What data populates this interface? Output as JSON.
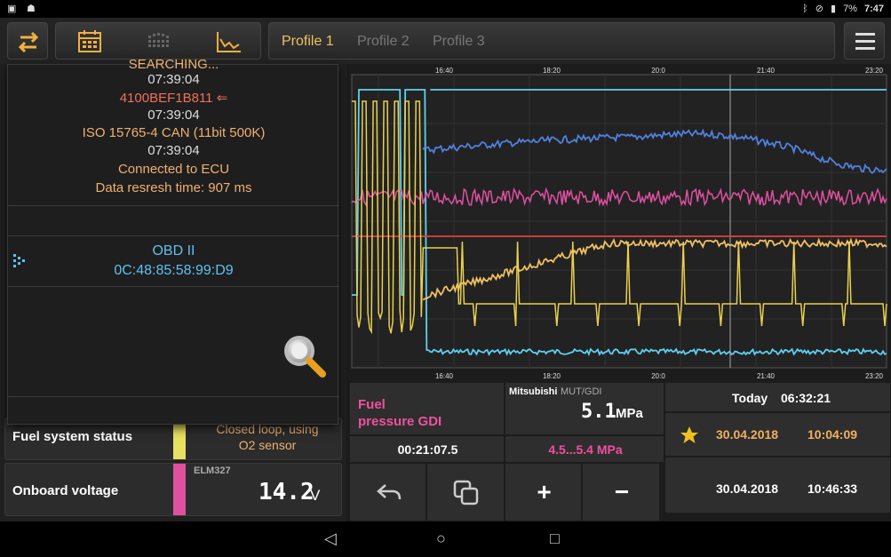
{
  "status": {
    "battery": "7%",
    "time": "7:47"
  },
  "toolbar": {
    "tabs": [
      {
        "label": "Profile 1"
      },
      {
        "label": "Profile 2"
      },
      {
        "label": "Profile 3"
      }
    ]
  },
  "overlay": {
    "lines": [
      "SEARCHING...",
      "07:39:04",
      "4100BEF1B811 ⇐",
      "07:39:04",
      "ISO 15765-4 CAN (11bit 500K)",
      "07:39:04",
      "Connected to ECU",
      "Data resresh time: 907 ms"
    ],
    "device": {
      "name": "OBD II",
      "mac": "0C:48:85:58:99:D9"
    }
  },
  "sensors": {
    "fuel_system": {
      "label": "Fuel system status",
      "value_line1": "Closed loop, using",
      "value_line2": "O2 sensor",
      "color": "#e8e060"
    },
    "onboard_voltage": {
      "label": "Onboard voltage",
      "source": "ELM327",
      "value": "14.2",
      "unit": "V",
      "color": "#e050a0"
    }
  },
  "chart_data": {
    "type": "line",
    "x_ticks": [
      "16:40",
      "18:20",
      "20:0",
      "21:40",
      "23:20"
    ],
    "series": [
      {
        "color": "#60d0f0"
      },
      {
        "color": "#5080e0"
      },
      {
        "color": "#e050a0"
      },
      {
        "color": "#e04040"
      },
      {
        "color": "#e8d050"
      },
      {
        "color": "#f0c060"
      }
    ],
    "grid": true
  },
  "bottom": {
    "title_line1": "Fuel",
    "title_line2": "pressure GDI",
    "source_brand": "Mitsubishi",
    "source_proto": "MUT/GDI",
    "value": "5.1",
    "unit": "MPa",
    "elapsed": "00:21:07.5",
    "range": "4.5...5.4 MPa",
    "today_label": "Today",
    "today_time": "06:32:21",
    "start_date": "30.04.2018",
    "start_time": "10:04:09",
    "end_date": "30.04.2018",
    "end_time": "10:46:33",
    "plus": "+",
    "minus": "−"
  },
  "nav": {
    "back": "◁",
    "home": "○",
    "recents": "□"
  }
}
